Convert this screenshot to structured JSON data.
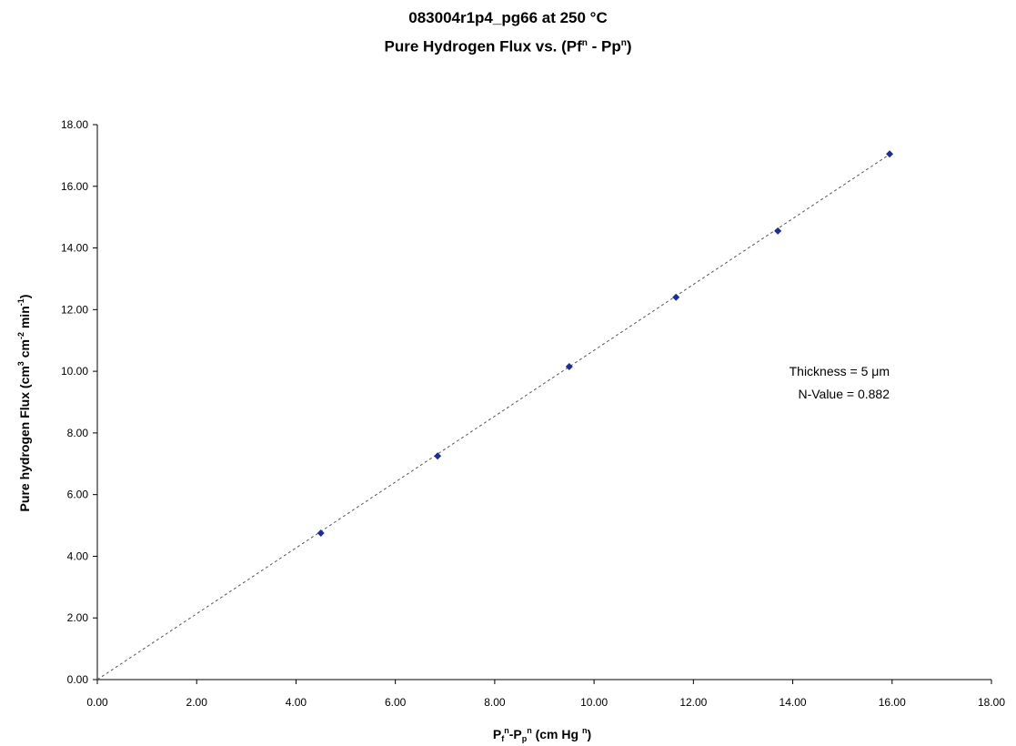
{
  "title": {
    "line1": "083004r1p4_pg66 at 250 °C",
    "line2_main": "Pure Hydrogen Flux vs. (Pf",
    "line2_sup1": "n",
    "line2_mid": " - Pp",
    "line2_sup2": "n",
    "line2_end": ")"
  },
  "chart_data": {
    "type": "scatter",
    "title": "083004r1p4_pg66 at 250 °C — Pure Hydrogen Flux vs. (Pfⁿ - Ppⁿ)",
    "xlabel": "Pfⁿ-Ppⁿ (cm Hg ⁿ)",
    "ylabel": "Pure hydrogen Flux (cm³ cm⁻² min⁻¹)",
    "xlim": [
      0,
      18
    ],
    "ylim": [
      0,
      18
    ],
    "x_ticks": [
      "0.00",
      "2.00",
      "4.00",
      "6.00",
      "8.00",
      "10.00",
      "12.00",
      "14.00",
      "16.00",
      "18.00"
    ],
    "y_ticks": [
      "0.00",
      "2.00",
      "4.00",
      "6.00",
      "8.00",
      "10.00",
      "12.00",
      "14.00",
      "16.00",
      "18.00"
    ],
    "grid": false,
    "legend": "none",
    "marker_color": "#1f2f8f",
    "trendline_color": "#555555",
    "series": [
      {
        "x": [
          4.5,
          6.85,
          9.5,
          11.65,
          13.7,
          15.95
        ],
        "y": [
          4.75,
          7.25,
          10.15,
          12.4,
          14.55,
          17.05
        ]
      }
    ],
    "trendline": {
      "type": "linear-through-origin",
      "slope": 1.068
    },
    "annotations": [
      "Thickness = 5 μm",
      "N-Value = 0.882"
    ]
  }
}
